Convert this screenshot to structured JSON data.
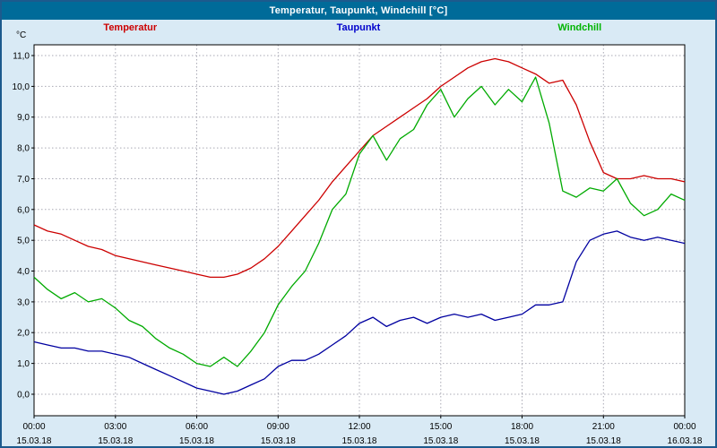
{
  "window": {
    "title": "Temperatur, Taupunkt, Windchill [°C]"
  },
  "legend": [
    {
      "label": "Temperatur",
      "color": "#cc0000"
    },
    {
      "label": "Taupunkt",
      "color": "#0000cc"
    },
    {
      "label": "Windchill",
      "color": "#00b400"
    }
  ],
  "colors": {
    "titlebar_bg": "#006b99",
    "window_bg": "#d9eaf5",
    "window_border": "#1c5a8d",
    "grid": "#a9a9b4"
  },
  "chart_data": {
    "type": "line",
    "title": "Temperatur, Taupunkt, Windchill [°C]",
    "ylabel": "°C",
    "xlabel": "",
    "grid": "dotted",
    "legend_position": "top",
    "ylim": [
      -0.7,
      11.35
    ],
    "y_ticks": [
      0,
      1,
      2,
      3,
      4,
      5,
      6,
      7,
      8,
      9,
      10,
      11
    ],
    "y_tick_labels": [
      "0,0",
      "1,0",
      "2,0",
      "3,0",
      "4,0",
      "5,0",
      "6,0",
      "7,0",
      "8,0",
      "9,0",
      "10,0",
      "11,0"
    ],
    "x_tick_hours": [
      0,
      3,
      6,
      9,
      12,
      15,
      18,
      21,
      24
    ],
    "x_tick_labels": [
      "00:00",
      "03:00",
      "06:00",
      "09:00",
      "12:00",
      "15:00",
      "18:00",
      "21:00",
      "00:00"
    ],
    "x_tick_dates": [
      "15.03.18",
      "15.03.18",
      "15.03.18",
      "15.03.18",
      "15.03.18",
      "15.03.18",
      "15.03.18",
      "15.03.18",
      "16.03.18"
    ],
    "x_hours": [
      0,
      0.5,
      1,
      1.5,
      2,
      2.5,
      3,
      3.5,
      4,
      4.5,
      5,
      5.5,
      6,
      6.5,
      7,
      7.5,
      8,
      8.5,
      9,
      9.5,
      10,
      10.5,
      11,
      11.5,
      12,
      12.5,
      13,
      13.5,
      14,
      14.5,
      15,
      15.5,
      16,
      16.5,
      17,
      17.5,
      18,
      18.5,
      19,
      19.5,
      20,
      20.5,
      21,
      21.5,
      22,
      22.5,
      23,
      23.5,
      24
    ],
    "series": [
      {
        "name": "Temperatur",
        "color": "#cc0000",
        "values": [
          5.5,
          5.3,
          5.2,
          5.0,
          4.8,
          4.7,
          4.5,
          4.4,
          4.3,
          4.2,
          4.1,
          4.0,
          3.9,
          3.8,
          3.8,
          3.9,
          4.1,
          4.4,
          4.8,
          5.3,
          5.8,
          6.3,
          6.9,
          7.4,
          7.9,
          8.4,
          8.7,
          9.0,
          9.3,
          9.6,
          10.0,
          10.3,
          10.6,
          10.8,
          10.9,
          10.8,
          10.6,
          10.4,
          10.1,
          10.2,
          9.4,
          8.2,
          7.2,
          7.0,
          7.0,
          7.1,
          7.0,
          7.0,
          6.9
        ]
      },
      {
        "name": "Taupunkt",
        "color": "#0000a0",
        "values": [
          1.7,
          1.6,
          1.5,
          1.5,
          1.4,
          1.4,
          1.3,
          1.2,
          1.0,
          0.8,
          0.6,
          0.4,
          0.2,
          0.1,
          0.0,
          0.1,
          0.3,
          0.5,
          0.9,
          1.1,
          1.1,
          1.3,
          1.6,
          1.9,
          2.3,
          2.5,
          2.2,
          2.4,
          2.5,
          2.3,
          2.5,
          2.6,
          2.5,
          2.6,
          2.4,
          2.5,
          2.6,
          2.9,
          2.9,
          3.0,
          4.3,
          5.0,
          5.2,
          5.3,
          5.1,
          5.0,
          5.1,
          5.0,
          4.9
        ]
      },
      {
        "name": "Windchill",
        "color": "#00aa00",
        "values": [
          3.8,
          3.4,
          3.1,
          3.3,
          3.0,
          3.1,
          2.8,
          2.4,
          2.2,
          1.8,
          1.5,
          1.3,
          1.0,
          0.9,
          1.2,
          0.9,
          1.4,
          2.0,
          2.9,
          3.5,
          4.0,
          4.9,
          6.0,
          6.5,
          7.8,
          8.4,
          7.6,
          8.3,
          8.6,
          9.4,
          9.9,
          9.0,
          9.6,
          10.0,
          9.4,
          9.9,
          9.5,
          10.3,
          8.8,
          6.6,
          6.4,
          6.7,
          6.6,
          7.0,
          6.2,
          5.8,
          6.0,
          6.5,
          6.3
        ]
      }
    ]
  }
}
